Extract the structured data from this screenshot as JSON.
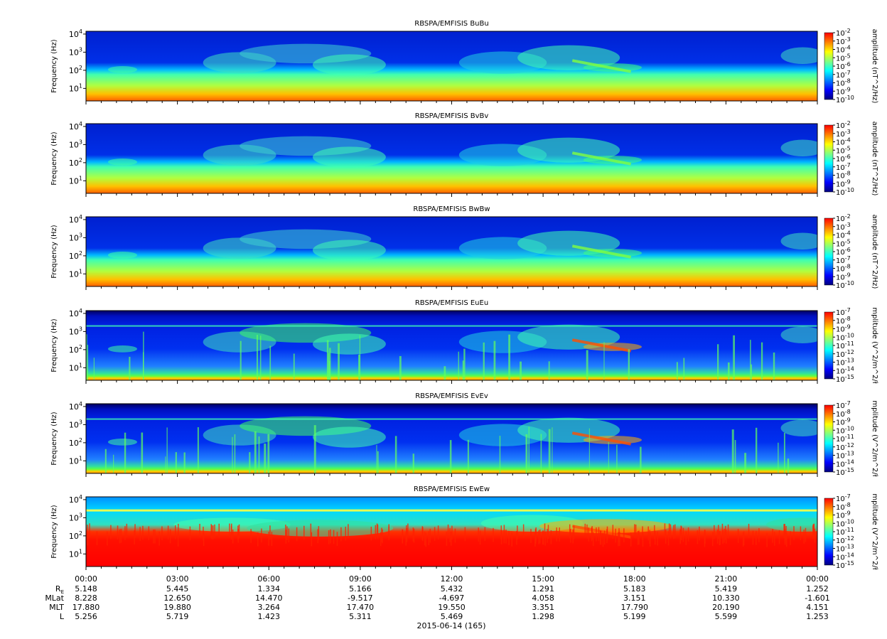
{
  "chart_data": {
    "type": "heatmap",
    "date_label": "2015-06-14 (165)",
    "x_ticks": [
      "00:00",
      "03:00",
      "06:00",
      "09:00",
      "12:00",
      "15:00",
      "18:00",
      "21:00",
      "00:00"
    ],
    "ephemeris": [
      {
        "label": "R",
        "sub": "E",
        "values": [
          "5.148",
          "5.445",
          "1.334",
          "5.166",
          "5.432",
          "1.291",
          "5.183",
          "5.419",
          "1.252"
        ]
      },
      {
        "label": "MLat",
        "sub": "",
        "values": [
          "8.228",
          "12.650",
          "14.470",
          "-9.517",
          "-4.697",
          "4.058",
          "3.151",
          "10.330",
          "-1.601"
        ]
      },
      {
        "label": "MLT",
        "sub": "",
        "values": [
          "17.880",
          "19.880",
          "3.264",
          "17.470",
          "19.550",
          "3.351",
          "17.790",
          "20.190",
          "4.151"
        ]
      },
      {
        "label": "L",
        "sub": "",
        "values": [
          "5.256",
          "5.719",
          "1.423",
          "5.311",
          "5.469",
          "1.298",
          "5.199",
          "5.599",
          "1.253"
        ]
      }
    ],
    "colormap": [
      "#00007f",
      "#0000ff",
      "#0080ff",
      "#00ffff",
      "#80ff80",
      "#ffff00",
      "#ff8000",
      "#ff0000"
    ],
    "panels": [
      {
        "title": "RBSPA/EMFISIS  BuBu",
        "ylabel": "Frequency (Hz)",
        "ylog": true,
        "ytick_exp": [
          "4",
          "3",
          "2",
          "1"
        ],
        "cbar_label": "amplitude (nT^2/Hz)",
        "cbar_exp": [
          "-2",
          "-3",
          "-4",
          "-5",
          "-6",
          "-7",
          "-8",
          "-9",
          "-10"
        ],
        "kind": "B"
      },
      {
        "title": "RBSPA/EMFISIS  BvBv",
        "ylabel": "Frequency (Hz)",
        "ylog": true,
        "ytick_exp": [
          "4",
          "3",
          "2",
          "1"
        ],
        "cbar_label": "amplitude (nT^2/Hz)",
        "cbar_exp": [
          "-2",
          "-3",
          "-4",
          "-5",
          "-6",
          "-7",
          "-8",
          "-9",
          "-10"
        ],
        "kind": "B"
      },
      {
        "title": "RBSPA/EMFISIS  BwBw",
        "ylabel": "Frequency (Hz)",
        "ylog": true,
        "ytick_exp": [
          "4",
          "3",
          "2",
          "1"
        ],
        "cbar_label": "amplitude (nT^2/Hz)",
        "cbar_exp": [
          "-2",
          "-3",
          "-4",
          "-5",
          "-6",
          "-7",
          "-8",
          "-9",
          "-10"
        ],
        "kind": "B"
      },
      {
        "title": "RBSPA/EMFISIS  EuEu",
        "ylabel": "Frequency (Hz)",
        "ylog": true,
        "ytick_exp": [
          "4",
          "3",
          "2",
          "1"
        ],
        "cbar_label": "mplitude (V^2/m^2/ł",
        "cbar_exp": [
          "-7",
          "-8",
          "-9",
          "-10",
          "-11",
          "-12",
          "-13",
          "-14",
          "-15"
        ],
        "kind": "E"
      },
      {
        "title": "RBSPA/EMFISIS  EvEv",
        "ylabel": "Frequency (Hz)",
        "ylog": true,
        "ytick_exp": [
          "4",
          "3",
          "2",
          "1"
        ],
        "cbar_label": "mplitude (V^2/m^2/ł",
        "cbar_exp": [
          "-7",
          "-8",
          "-9",
          "-10",
          "-11",
          "-12",
          "-13",
          "-14",
          "-15"
        ],
        "kind": "E"
      },
      {
        "title": "RBSPA/EMFISIS  EwEw",
        "ylabel": "Frequency (Hz)",
        "ylog": true,
        "ytick_exp": [
          "4",
          "3",
          "2",
          "1"
        ],
        "cbar_label": "mplitude (V^2/m^2/ł",
        "cbar_exp": [
          "-7",
          "-8",
          "-9",
          "-10",
          "-11",
          "-12",
          "-13",
          "-14",
          "-15"
        ],
        "kind": "Ew"
      }
    ]
  }
}
